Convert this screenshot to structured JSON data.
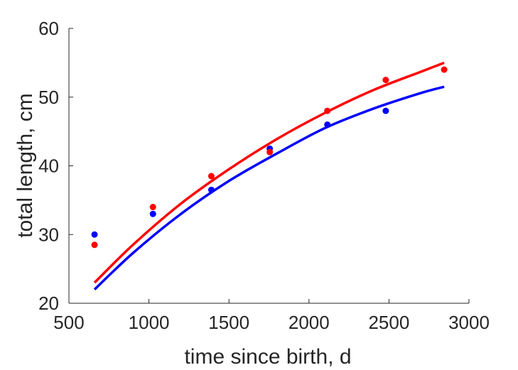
{
  "chart_data": {
    "type": "scatter",
    "title": "",
    "xlabel": "time since birth, d",
    "ylabel": "total length, cm",
    "xlim": [
      500,
      3000
    ],
    "ylim": [
      20,
      60
    ],
    "xticks": [
      500,
      1000,
      1500,
      2000,
      2500,
      3000
    ],
    "yticks": [
      20,
      30,
      40,
      50,
      60
    ],
    "grid": false,
    "box": "left-bottom",
    "series": [
      {
        "color": "#0000ff",
        "points": {
          "x": [
            660,
            1025,
            1390,
            1755,
            2115,
            2480
          ],
          "y": [
            30.0,
            33.0,
            36.5,
            42.5,
            46.0,
            48.0
          ]
        },
        "curve": {
          "x": [
            660,
            900,
            1200,
            1500,
            1800,
            2100,
            2400,
            2700,
            2845
          ],
          "y": [
            22.0,
            27.3,
            33.0,
            37.8,
            41.8,
            45.5,
            48.3,
            50.6,
            51.5
          ]
        }
      },
      {
        "color": "#ff0000",
        "points": {
          "x": [
            660,
            1025,
            1390,
            1755,
            2115,
            2480,
            2845
          ],
          "y": [
            28.5,
            34.0,
            38.5,
            42.0,
            48.0,
            52.5,
            54.0
          ]
        },
        "curve": {
          "x": [
            660,
            900,
            1200,
            1500,
            1800,
            2100,
            2400,
            2700,
            2845
          ],
          "y": [
            23.0,
            28.5,
            34.5,
            39.5,
            43.9,
            47.7,
            51.0,
            53.7,
            55.0
          ]
        }
      }
    ]
  }
}
